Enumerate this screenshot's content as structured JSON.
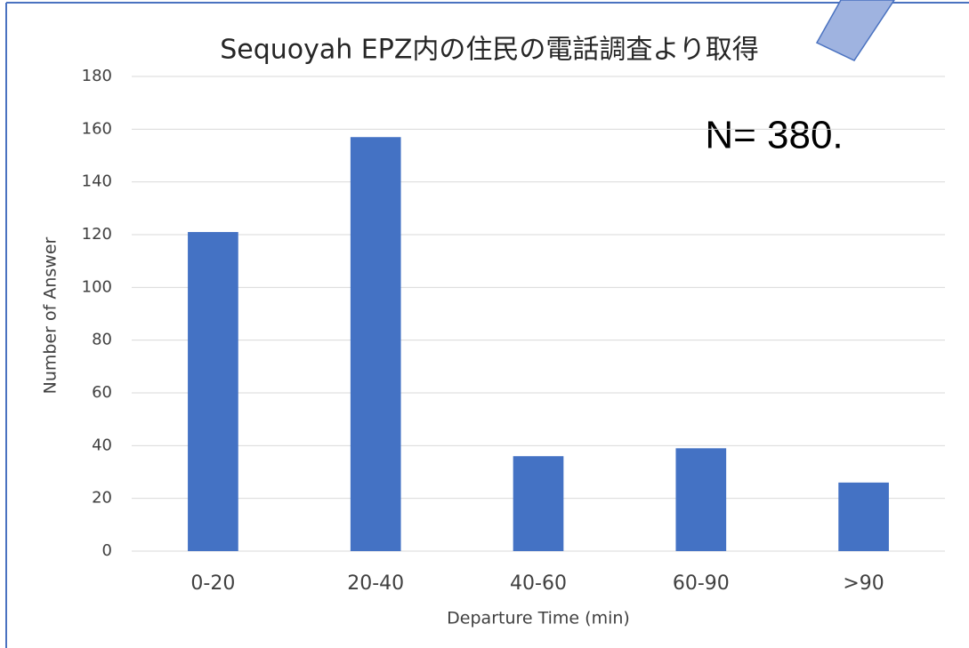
{
  "chart_data": {
    "type": "bar",
    "title": "Sequoyah EPZ内の住民の電話調査より取得",
    "annotation": "N= 380.",
    "x_label": "Departure Time (min)",
    "y_label": "Number of Answer",
    "categories": [
      "0-20",
      "20-40",
      "40-60",
      "60-90",
      ">90"
    ],
    "values": [
      121,
      157,
      36,
      39,
      26
    ],
    "color": "#4472c4",
    "ylim": [
      0,
      180
    ],
    "yticks": [
      0,
      20,
      40,
      60,
      80,
      100,
      120,
      140,
      160,
      180
    ],
    "grid": true
  }
}
